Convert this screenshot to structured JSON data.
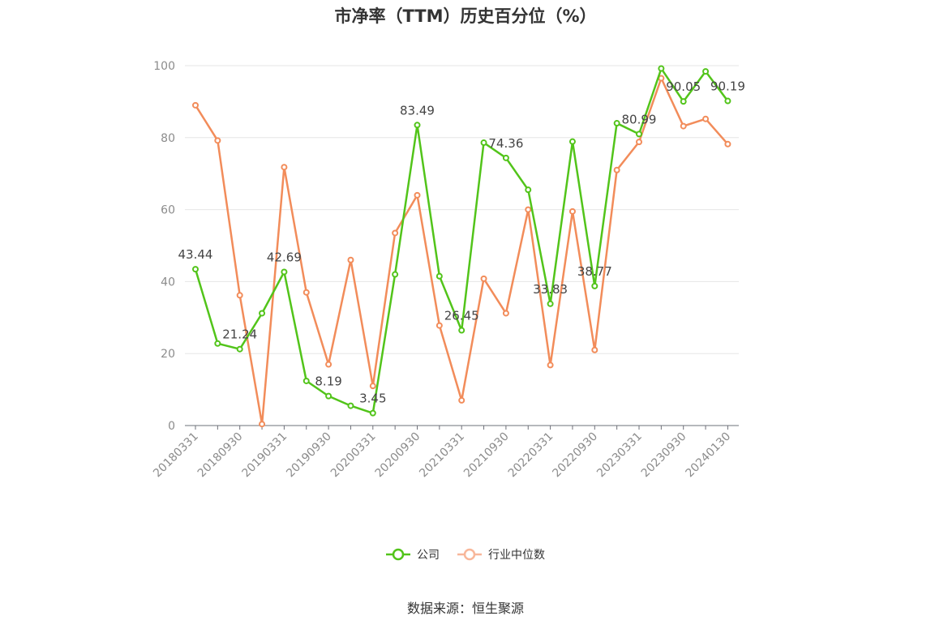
{
  "chart_data": {
    "type": "line",
    "title": "市净率（TTM）历史百分位（%）",
    "ylim": [
      0,
      100
    ],
    "y_ticks": [
      0,
      20,
      40,
      60,
      80,
      100
    ],
    "grid": true,
    "legend_position": "bottom",
    "x_tick_labels": [
      "20180331",
      "20180930",
      "20190331",
      "20190930",
      "20200331",
      "20200930",
      "20210331",
      "20210930",
      "20220331",
      "20220930",
      "20230331",
      "20230930",
      "20240130"
    ],
    "x": [
      "20180331",
      "20180630",
      "20180930",
      "20181231",
      "20190331",
      "20190630",
      "20190930",
      "20191231",
      "20200331",
      "20200630",
      "20200930",
      "20201231",
      "20210331",
      "20210630",
      "20210930",
      "20211231",
      "20220331",
      "20220630",
      "20220930",
      "20221231",
      "20230331",
      "20230630",
      "20230930",
      "20231231",
      "20240130"
    ],
    "series": [
      {
        "name": "公司",
        "color": "#52c41a",
        "values": [
          43.44,
          22.8,
          21.24,
          31.2,
          42.69,
          12.4,
          8.19,
          5.5,
          3.45,
          42.0,
          83.49,
          41.5,
          26.45,
          78.6,
          74.36,
          65.5,
          33.83,
          78.9,
          38.77,
          84.0,
          80.99,
          99.2,
          90.05,
          98.4,
          90.19
        ],
        "labels": {
          "0": "43.44",
          "2": "21.24",
          "4": "42.69",
          "6": "8.19",
          "8": "3.45",
          "10": "83.49",
          "12": "26.45",
          "14": "74.36",
          "16": "33.83",
          "18": "38.77",
          "20": "80.99",
          "22": "90.05",
          "24": "90.19"
        }
      },
      {
        "name": "行业中位数",
        "color": "#f28c5a",
        "values": [
          89.0,
          79.2,
          36.2,
          0.4,
          71.8,
          37.0,
          17.0,
          46.0,
          11.0,
          53.5,
          64.0,
          27.8,
          7.0,
          40.8,
          31.2,
          60.0,
          16.8,
          59.5,
          21.0,
          71.0,
          78.8,
          96.5,
          83.2,
          85.2,
          78.2
        ]
      }
    ]
  },
  "legend": {
    "items": [
      {
        "label": "公司",
        "color": "#52c41a"
      },
      {
        "label": "行业中位数",
        "color": "#f8b79a"
      }
    ]
  },
  "footer": {
    "source": "数据来源：恒生聚源"
  }
}
